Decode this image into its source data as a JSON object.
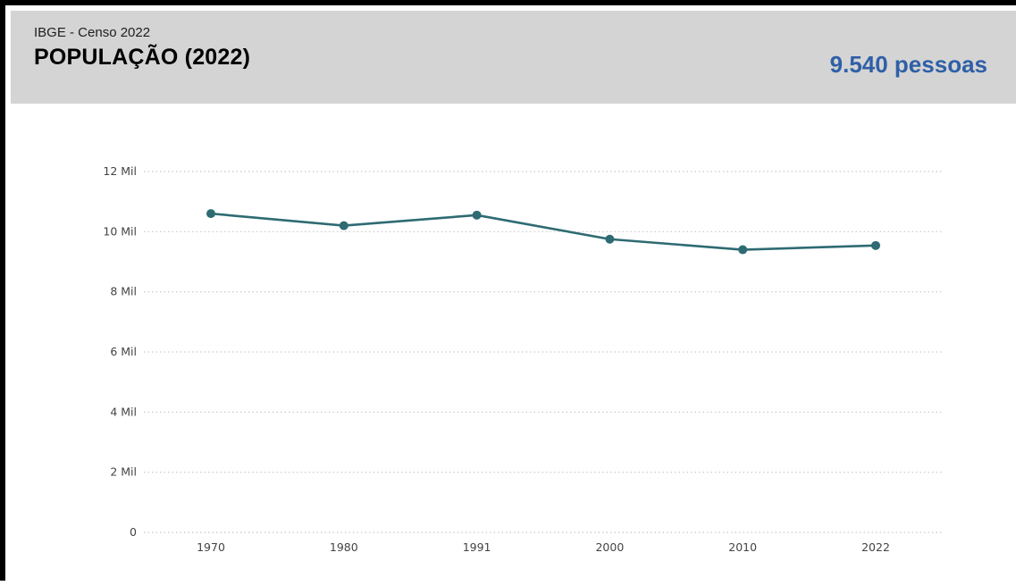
{
  "header": {
    "source": "IBGE - Censo 2022",
    "title": "POPULAÇÃO (2022)",
    "headline_value": "9.540 pessoas"
  },
  "colors": {
    "header_bg": "#d4d4d4",
    "headline_value": "#2f5fa7",
    "line": "#2e6b72",
    "grid": "#c8c8c8"
  },
  "chart_data": {
    "type": "line",
    "categories": [
      "1970",
      "1980",
      "1991",
      "2000",
      "2010",
      "2022"
    ],
    "series": [
      {
        "values": [
          10600,
          10200,
          10550,
          9750,
          9400,
          9540
        ]
      }
    ],
    "yticks": [
      0,
      2000,
      4000,
      6000,
      8000,
      10000,
      12000
    ],
    "ytick_labels": [
      "0",
      "2 Mil",
      "4 Mil",
      "6 Mil",
      "8 Mil",
      "10 Mil",
      "12 Mil"
    ],
    "ylim": [
      0,
      12000
    ],
    "grid": true,
    "legend": false,
    "title": "",
    "xlabel": "",
    "ylabel": ""
  }
}
